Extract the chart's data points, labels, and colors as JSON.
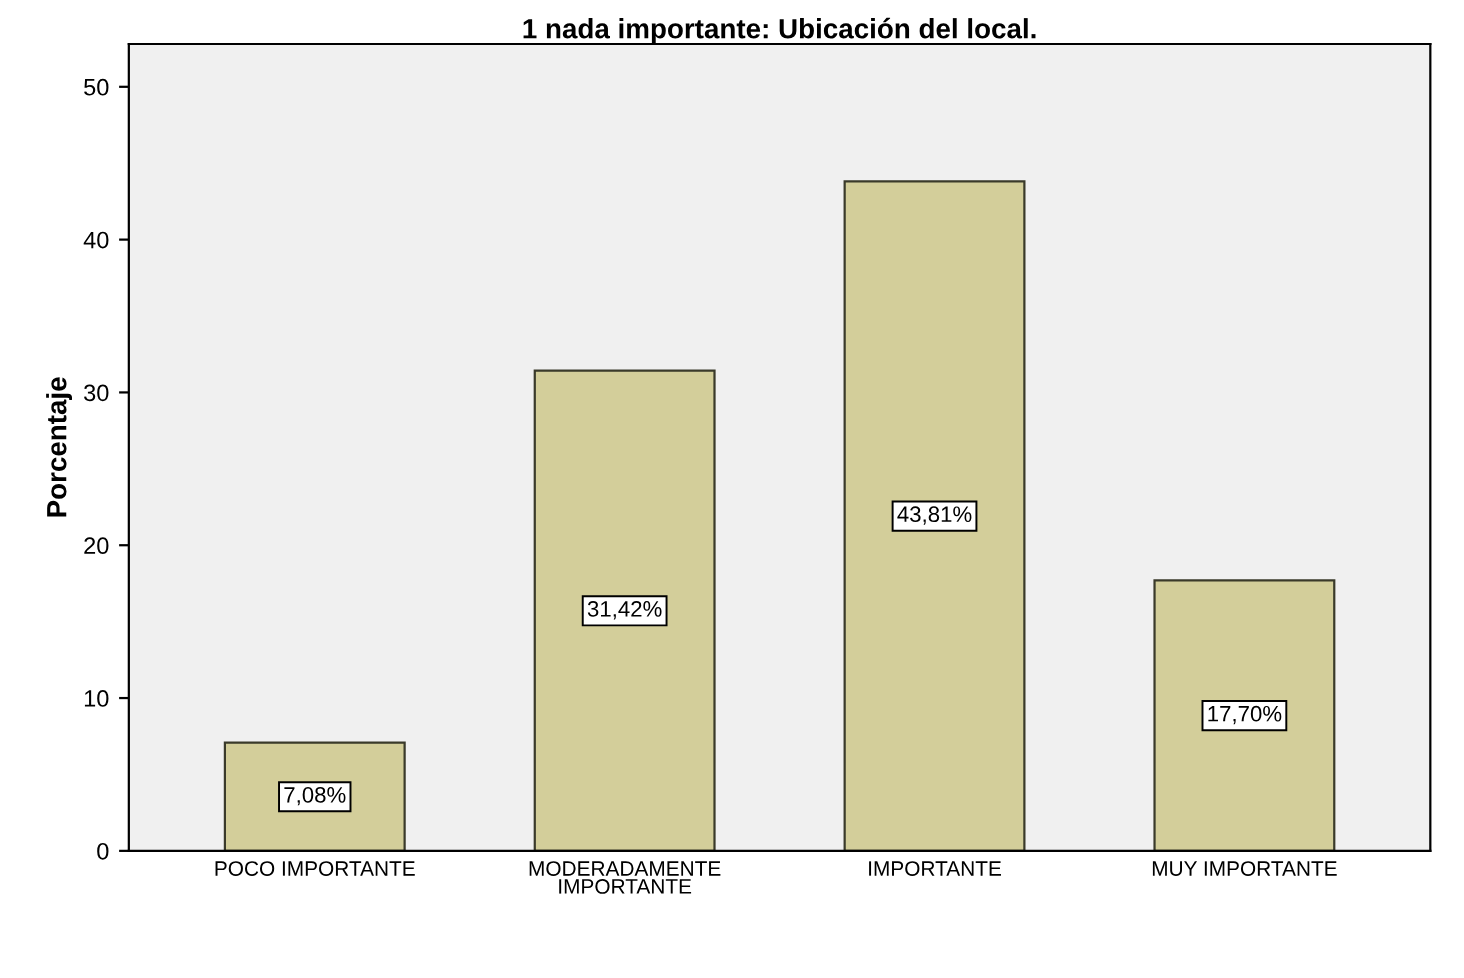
{
  "chart_data": {
    "type": "bar",
    "title": "1 nada importante: Ubicación del local.",
    "ylabel": "Porcentaje",
    "categories": [
      "POCO IMPORTANTE",
      "MODERADAMENTE\nIMPORTANTE",
      "IMPORTANTE",
      "MUY IMPORTANTE"
    ],
    "values": [
      7.08,
      31.42,
      43.81,
      17.7
    ],
    "value_labels": [
      "7,08%",
      "31,42%",
      "43,81%",
      "17,70%"
    ],
    "color": "#d3ce9a",
    "ylim": [
      0,
      52.8
    ],
    "yticks": [
      0,
      10,
      20,
      30,
      40,
      50
    ],
    "grid": false
  }
}
